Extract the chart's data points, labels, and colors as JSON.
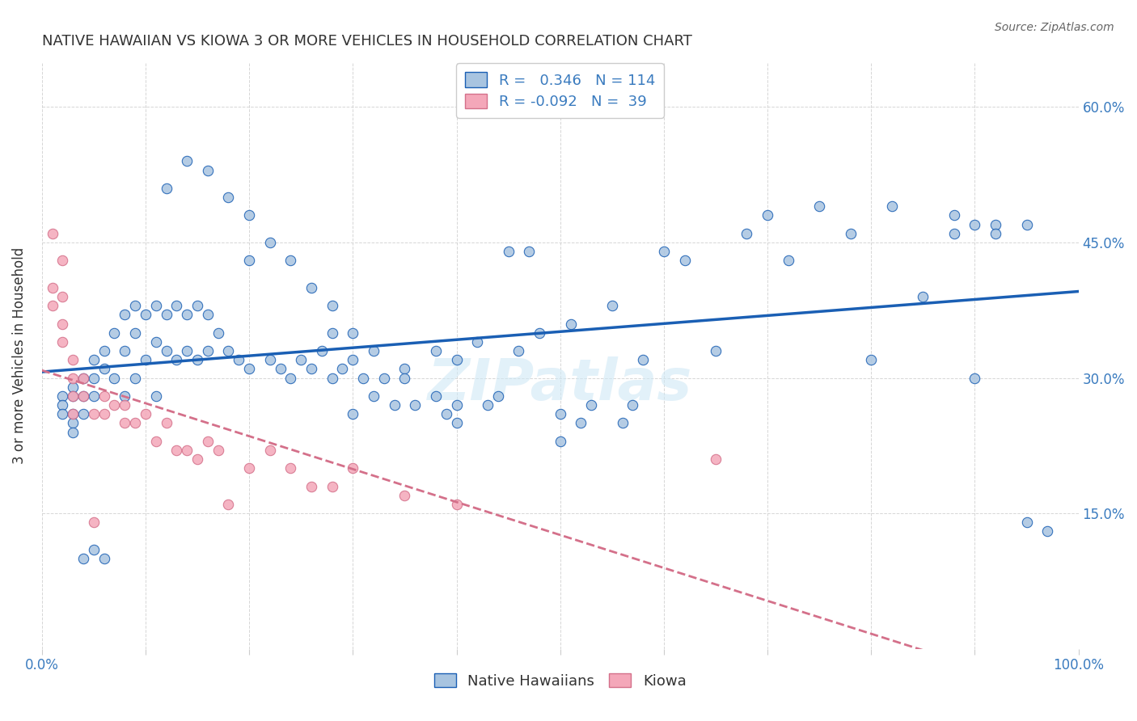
{
  "title": "NATIVE HAWAIIAN VS KIOWA 3 OR MORE VEHICLES IN HOUSEHOLD CORRELATION CHART",
  "source": "Source: ZipAtlas.com",
  "xlabel": "",
  "ylabel": "3 or more Vehicles in Household",
  "xlim": [
    0.0,
    1.0
  ],
  "ylim": [
    0.0,
    0.65
  ],
  "x_ticks": [
    0.0,
    0.1,
    0.2,
    0.3,
    0.4,
    0.5,
    0.6,
    0.7,
    0.8,
    0.9,
    1.0
  ],
  "x_tick_labels": [
    "0.0%",
    "",
    "",
    "",
    "",
    "",
    "",
    "",
    "",
    "",
    "100.0%"
  ],
  "y_ticks": [
    0.0,
    0.15,
    0.3,
    0.45,
    0.6
  ],
  "y_tick_labels": [
    "",
    "15.0%",
    "30.0%",
    "45.0%",
    "60.0%"
  ],
  "legend_R1": "0.346",
  "legend_N1": "114",
  "legend_R2": "-0.092",
  "legend_N2": "39",
  "color_hawaiian": "#a8c4e0",
  "color_kiowa": "#f4a7b9",
  "color_line_hawaiian": "#1a5fb4",
  "color_line_kiowa": "#e8a0b0",
  "watermark": "ZIPatlas",
  "nh_x": [
    0.02,
    0.02,
    0.02,
    0.03,
    0.03,
    0.03,
    0.03,
    0.03,
    0.04,
    0.04,
    0.04,
    0.04,
    0.05,
    0.05,
    0.05,
    0.05,
    0.06,
    0.06,
    0.06,
    0.07,
    0.07,
    0.08,
    0.08,
    0.08,
    0.09,
    0.09,
    0.09,
    0.1,
    0.1,
    0.11,
    0.11,
    0.11,
    0.12,
    0.12,
    0.13,
    0.13,
    0.14,
    0.14,
    0.15,
    0.15,
    0.16,
    0.16,
    0.17,
    0.18,
    0.19,
    0.2,
    0.2,
    0.22,
    0.23,
    0.24,
    0.25,
    0.26,
    0.27,
    0.28,
    0.28,
    0.29,
    0.3,
    0.3,
    0.31,
    0.32,
    0.33,
    0.34,
    0.35,
    0.36,
    0.38,
    0.39,
    0.4,
    0.4,
    0.42,
    0.43,
    0.44,
    0.45,
    0.46,
    0.47,
    0.48,
    0.5,
    0.5,
    0.51,
    0.52,
    0.53,
    0.55,
    0.56,
    0.57,
    0.58,
    0.6,
    0.62,
    0.65,
    0.68,
    0.7,
    0.72,
    0.75,
    0.78,
    0.8,
    0.82,
    0.85,
    0.88,
    0.9,
    0.92,
    0.95,
    0.97,
    0.88,
    0.9,
    0.92,
    0.95,
    0.12,
    0.14,
    0.16,
    0.18,
    0.2,
    0.22,
    0.24,
    0.26,
    0.28,
    0.3,
    0.32,
    0.35,
    0.38,
    0.4
  ],
  "nh_y": [
    0.28,
    0.27,
    0.26,
    0.29,
    0.28,
    0.26,
    0.25,
    0.24,
    0.3,
    0.28,
    0.26,
    0.1,
    0.32,
    0.3,
    0.28,
    0.11,
    0.33,
    0.31,
    0.1,
    0.35,
    0.3,
    0.37,
    0.33,
    0.28,
    0.38,
    0.35,
    0.3,
    0.37,
    0.32,
    0.38,
    0.34,
    0.28,
    0.37,
    0.33,
    0.38,
    0.32,
    0.37,
    0.33,
    0.38,
    0.32,
    0.37,
    0.33,
    0.35,
    0.33,
    0.32,
    0.43,
    0.31,
    0.32,
    0.31,
    0.3,
    0.32,
    0.31,
    0.33,
    0.35,
    0.3,
    0.31,
    0.32,
    0.26,
    0.3,
    0.28,
    0.3,
    0.27,
    0.31,
    0.27,
    0.33,
    0.26,
    0.32,
    0.27,
    0.34,
    0.27,
    0.28,
    0.44,
    0.33,
    0.44,
    0.35,
    0.26,
    0.23,
    0.36,
    0.25,
    0.27,
    0.38,
    0.25,
    0.27,
    0.32,
    0.44,
    0.43,
    0.33,
    0.46,
    0.48,
    0.43,
    0.49,
    0.46,
    0.32,
    0.49,
    0.39,
    0.46,
    0.3,
    0.47,
    0.14,
    0.13,
    0.48,
    0.47,
    0.46,
    0.47,
    0.51,
    0.54,
    0.53,
    0.5,
    0.48,
    0.45,
    0.43,
    0.4,
    0.38,
    0.35,
    0.33,
    0.3,
    0.28,
    0.25
  ],
  "kiowa_x": [
    0.01,
    0.01,
    0.01,
    0.02,
    0.02,
    0.02,
    0.02,
    0.03,
    0.03,
    0.03,
    0.03,
    0.04,
    0.04,
    0.05,
    0.05,
    0.06,
    0.06,
    0.07,
    0.08,
    0.08,
    0.09,
    0.1,
    0.11,
    0.12,
    0.13,
    0.14,
    0.15,
    0.16,
    0.17,
    0.18,
    0.2,
    0.22,
    0.24,
    0.26,
    0.28,
    0.3,
    0.35,
    0.4,
    0.65
  ],
  "kiowa_y": [
    0.46,
    0.4,
    0.38,
    0.43,
    0.39,
    0.36,
    0.34,
    0.32,
    0.3,
    0.28,
    0.26,
    0.3,
    0.28,
    0.26,
    0.14,
    0.28,
    0.26,
    0.27,
    0.25,
    0.27,
    0.25,
    0.26,
    0.23,
    0.25,
    0.22,
    0.22,
    0.21,
    0.23,
    0.22,
    0.16,
    0.2,
    0.22,
    0.2,
    0.18,
    0.18,
    0.2,
    0.17,
    0.16,
    0.21
  ]
}
